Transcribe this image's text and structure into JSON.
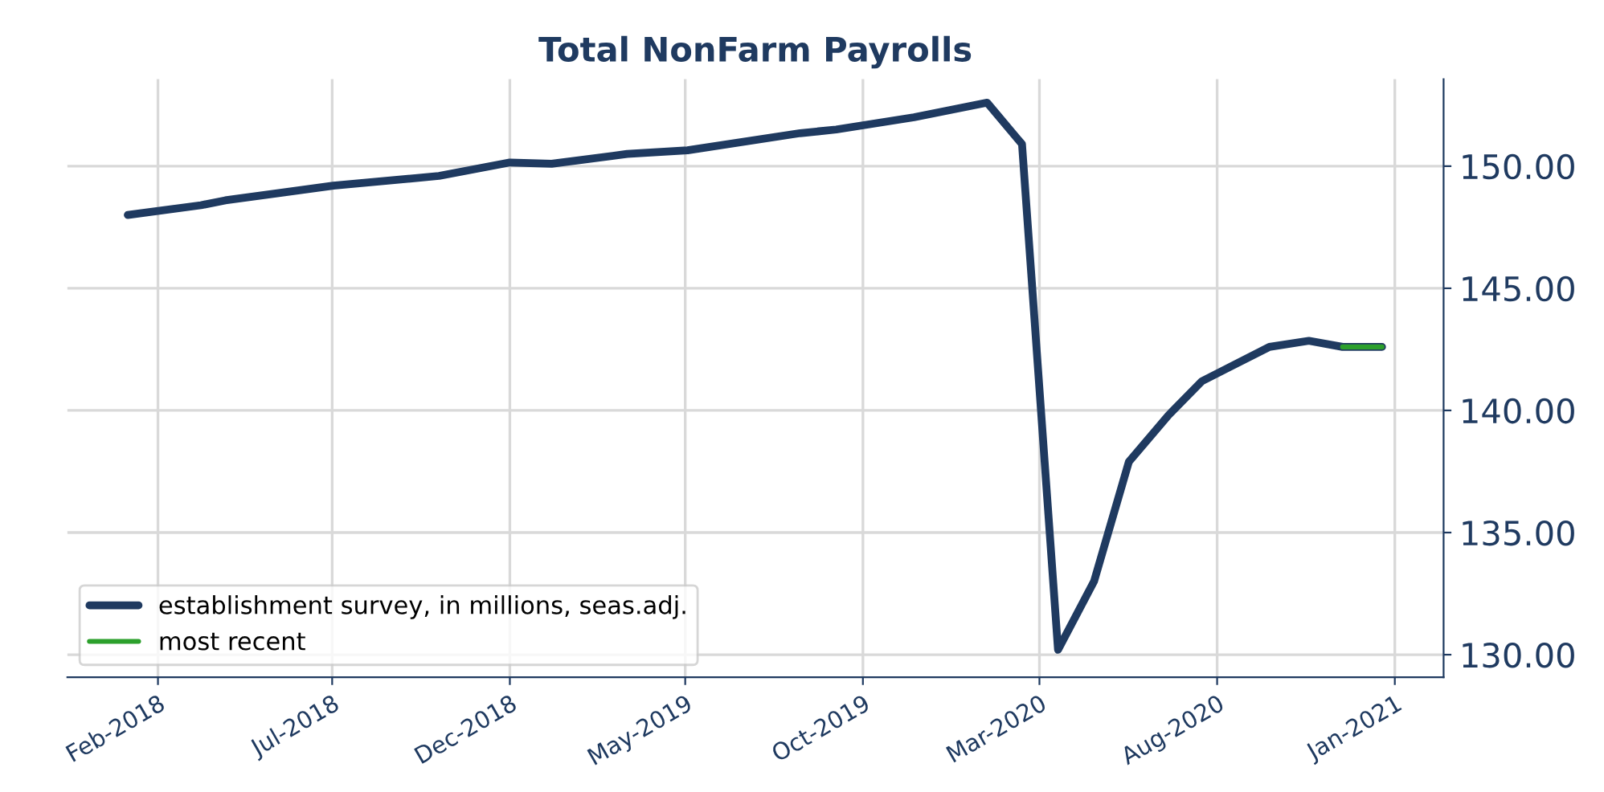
{
  "chart_data": {
    "type": "line",
    "title": "Total NonFarm Payrolls",
    "series": [
      {
        "name": "establishment survey, in millions, seas.adj.",
        "color": "#1f3a60",
        "x": [
          "2018-01-06",
          "2018-03-10",
          "2018-03-31",
          "2018-05-16",
          "2018-07-02",
          "2018-10-01",
          "2018-12-01",
          "2019-01-06",
          "2019-03-12",
          "2019-05-03",
          "2019-08-08",
          "2019-09-08",
          "2019-11-14",
          "2020-01-16",
          "2020-02-15",
          "2020-03-17",
          "2020-04-17",
          "2020-05-17",
          "2020-06-20",
          "2020-07-19",
          "2020-09-15",
          "2020-10-19",
          "2020-11-17",
          "2020-12-21"
        ],
        "values": [
          148.0,
          148.4,
          148.6,
          148.9,
          149.2,
          149.6,
          150.15,
          150.1,
          150.5,
          150.65,
          151.35,
          151.5,
          152.0,
          152.6,
          150.9,
          130.2,
          133.0,
          137.9,
          139.8,
          141.2,
          142.6,
          142.85,
          142.6,
          142.6
        ]
      },
      {
        "name": "most recent",
        "color": "#2ca02c",
        "x": [
          "2020-11-17",
          "2020-12-21"
        ],
        "values": [
          142.6,
          142.6
        ]
      }
    ],
    "xlim": [
      "2017-11-15",
      "2021-02-12"
    ],
    "xticks": [
      {
        "value": "2018-02-01",
        "label": "Feb-2018"
      },
      {
        "value": "2018-07-01",
        "label": "Jul-2018"
      },
      {
        "value": "2018-12-01",
        "label": "Dec-2018"
      },
      {
        "value": "2019-05-01",
        "label": "May-2019"
      },
      {
        "value": "2019-10-01",
        "label": "Oct-2019"
      },
      {
        "value": "2020-03-01",
        "label": "Mar-2020"
      },
      {
        "value": "2020-08-01",
        "label": "Aug-2020"
      },
      {
        "value": "2021-01-01",
        "label": "Jan-2021"
      }
    ],
    "ylim": [
      129.08,
      153.56
    ],
    "yticks": [
      {
        "value": 130,
        "label": "130.00"
      },
      {
        "value": 135,
        "label": "135.00"
      },
      {
        "value": 140,
        "label": "140.00"
      },
      {
        "value": 145,
        "label": "145.00"
      },
      {
        "value": 150,
        "label": "150.00"
      }
    ],
    "grid": true,
    "legend": "lower left",
    "marker": "none",
    "line_style": "solid"
  }
}
